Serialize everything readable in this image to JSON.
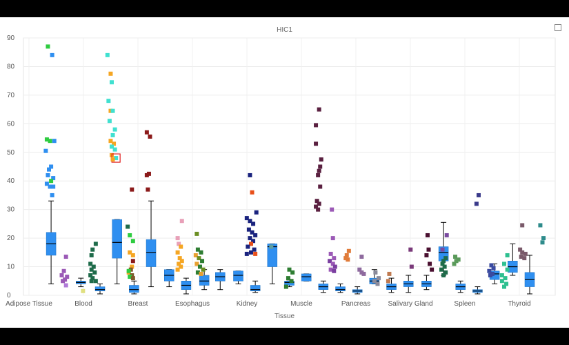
{
  "chart_data": {
    "type": "box",
    "title": "HIC1",
    "xlabel": "Tissue",
    "ylabel": "",
    "ylim": [
      0,
      90
    ],
    "yticks": [
      0,
      10,
      20,
      30,
      40,
      50,
      60,
      70,
      80,
      90
    ],
    "grid": true,
    "categories": [
      "Adipose Tissue",
      "Blood",
      "Breast",
      "Esophagus",
      "Kidney",
      "Muscle",
      "Pancreas",
      "Salivary Gland",
      "Spleen",
      "Thyroid"
    ],
    "box_color": "#2f8ff0",
    "boxes": [
      {
        "x": 2.6,
        "min": 4,
        "q1": 14,
        "median": 18,
        "q3": 22,
        "max": 33
      },
      {
        "x": 5.4,
        "min": 3,
        "q1": 4,
        "median": 4.5,
        "q3": 5,
        "max": 6
      },
      {
        "x": 7.2,
        "min": 0.5,
        "q1": 1.5,
        "median": 2,
        "q3": 3,
        "max": 4
      },
      {
        "x": 8.8,
        "min": 4,
        "q1": 13,
        "median": 18.5,
        "q3": 26.5,
        "max": 26.5
      },
      {
        "x": 10.4,
        "min": 0.5,
        "q1": 1,
        "median": 2,
        "q3": 3.5,
        "max": 5
      },
      {
        "x": 12.0,
        "min": 3,
        "q1": 10,
        "median": 15,
        "q3": 19.5,
        "max": 33
      },
      {
        "x": 13.7,
        "min": 3,
        "q1": 5,
        "median": 7,
        "q3": 9,
        "max": 9
      },
      {
        "x": 15.3,
        "min": 0.5,
        "q1": 2,
        "median": 3.5,
        "q3": 5,
        "max": 6
      },
      {
        "x": 17.0,
        "min": 2,
        "q1": 3.5,
        "median": 5,
        "q3": 7,
        "max": 9
      },
      {
        "x": 18.5,
        "min": 2,
        "q1": 5,
        "median": 6.5,
        "q3": 8,
        "max": 9
      },
      {
        "x": 20.2,
        "min": 4,
        "q1": 5,
        "median": 7,
        "q3": 8.5,
        "max": 8.5
      },
      {
        "x": 21.8,
        "min": 1,
        "q1": 1.5,
        "median": 2,
        "q3": 3.5,
        "max": 5
      },
      {
        "x": 23.4,
        "min": 4,
        "q1": 10,
        "median": 17,
        "q3": 18,
        "max": 18
      },
      {
        "x": 25.0,
        "min": 3,
        "q1": 3.5,
        "median": 4.5,
        "q3": 5,
        "max": 5
      },
      {
        "x": 26.6,
        "min": 5,
        "q1": 5,
        "median": 6.5,
        "q3": 7.5,
        "max": 7.5
      },
      {
        "x": 28.2,
        "min": 1,
        "q1": 2,
        "median": 3,
        "q3": 4,
        "max": 5
      },
      {
        "x": 29.8,
        "min": 1,
        "q1": 1.5,
        "median": 2,
        "q3": 3,
        "max": 4
      },
      {
        "x": 31.4,
        "min": 0.5,
        "q1": 1,
        "median": 1.5,
        "q3": 2,
        "max": 3
      },
      {
        "x": 33.0,
        "min": 4,
        "q1": 4,
        "median": 5,
        "q3": 6,
        "max": 9
      },
      {
        "x": 34.6,
        "min": 1,
        "q1": 2,
        "median": 3,
        "q3": 4,
        "max": 6
      },
      {
        "x": 36.2,
        "min": 1,
        "q1": 3,
        "median": 4,
        "q3": 5,
        "max": 7
      },
      {
        "x": 37.9,
        "min": 2,
        "q1": 3,
        "median": 4,
        "q3": 5,
        "max": 7
      },
      {
        "x": 39.5,
        "min": 7,
        "q1": 12,
        "median": 15,
        "q3": 17,
        "max": 25.5
      },
      {
        "x": 41.1,
        "min": 1,
        "q1": 2,
        "median": 3,
        "q3": 4,
        "max": 5
      },
      {
        "x": 42.7,
        "min": 0.5,
        "q1": 1,
        "median": 1.5,
        "q3": 2,
        "max": 3
      },
      {
        "x": 44.3,
        "min": 4,
        "q1": 5.5,
        "median": 7.5,
        "q3": 8.5,
        "max": 11
      },
      {
        "x": 46.0,
        "min": 7,
        "q1": 8,
        "median": 10,
        "q3": 12,
        "max": 18
      },
      {
        "x": 47.6,
        "min": 0.5,
        "q1": 3,
        "median": 5.5,
        "q3": 8,
        "max": 14
      }
    ],
    "points": [
      {
        "x": 2.3,
        "y": 87,
        "c": "#2ecc40"
      },
      {
        "x": 2.7,
        "y": 84,
        "c": "#2f8ff0"
      },
      {
        "x": 2.2,
        "y": 54.5,
        "c": "#2ecc40"
      },
      {
        "x": 2.5,
        "y": 54,
        "c": "#2ecc40"
      },
      {
        "x": 2.9,
        "y": 54,
        "c": "#2f8ff0"
      },
      {
        "x": 2.1,
        "y": 50.5,
        "c": "#2f8ff0"
      },
      {
        "x": 2.6,
        "y": 45,
        "c": "#2f8ff0"
      },
      {
        "x": 2.4,
        "y": 44,
        "c": "#2f8ff0"
      },
      {
        "x": 2.3,
        "y": 42,
        "c": "#2f8ff0"
      },
      {
        "x": 2.8,
        "y": 41,
        "c": "#2f8ff0"
      },
      {
        "x": 2.2,
        "y": 39,
        "c": "#2f8ff0"
      },
      {
        "x": 2.6,
        "y": 40,
        "c": "#2ecc40"
      },
      {
        "x": 2.5,
        "y": 38,
        "c": "#2f8ff0"
      },
      {
        "x": 2.8,
        "y": 38,
        "c": "#2f8ff0"
      },
      {
        "x": 2.7,
        "y": 35,
        "c": "#2f8ff0"
      },
      {
        "x": 4.0,
        "y": 13.5,
        "c": "#9b59b6"
      },
      {
        "x": 3.8,
        "y": 8.5,
        "c": "#9b59b6"
      },
      {
        "x": 3.6,
        "y": 7,
        "c": "#9b59b6"
      },
      {
        "x": 4.1,
        "y": 6.5,
        "c": "#9b59b6"
      },
      {
        "x": 3.9,
        "y": 5.5,
        "c": "#9b59b6"
      },
      {
        "x": 3.7,
        "y": 5,
        "c": "#9b59b6"
      },
      {
        "x": 4.0,
        "y": 3.5,
        "c": "#b07ad8"
      },
      {
        "x": 5.6,
        "y": 1.5,
        "c": "#e0e080"
      },
      {
        "x": 6.8,
        "y": 18,
        "c": "#1e6b4a"
      },
      {
        "x": 6.5,
        "y": 16,
        "c": "#1e6b4a"
      },
      {
        "x": 6.4,
        "y": 14,
        "c": "#1e6b4a"
      },
      {
        "x": 6.3,
        "y": 11,
        "c": "#1e6b4a"
      },
      {
        "x": 6.6,
        "y": 10,
        "c": "#1e6b4a"
      },
      {
        "x": 6.4,
        "y": 9,
        "c": "#1e6b4a"
      },
      {
        "x": 6.7,
        "y": 8,
        "c": "#1e6b4a"
      },
      {
        "x": 6.3,
        "y": 7,
        "c": "#1e6b4a"
      },
      {
        "x": 6.5,
        "y": 6,
        "c": "#1e6b4a"
      },
      {
        "x": 6.8,
        "y": 5,
        "c": "#1e6b4a"
      },
      {
        "x": 6.4,
        "y": 5,
        "c": "#1e6b4a"
      },
      {
        "x": 7.9,
        "y": 84,
        "c": "#40e0d0"
      },
      {
        "x": 8.2,
        "y": 77.5,
        "c": "#f5a623"
      },
      {
        "x": 8.3,
        "y": 74.5,
        "c": "#40e0d0"
      },
      {
        "x": 8.0,
        "y": 68,
        "c": "#40e0d0"
      },
      {
        "x": 8.2,
        "y": 64.5,
        "c": "#f5a623"
      },
      {
        "x": 8.4,
        "y": 64.5,
        "c": "#40e0d0"
      },
      {
        "x": 8.1,
        "y": 61,
        "c": "#40e0d0"
      },
      {
        "x": 8.6,
        "y": 58,
        "c": "#40e0d0"
      },
      {
        "x": 8.4,
        "y": 56,
        "c": "#40e0d0"
      },
      {
        "x": 8.2,
        "y": 54,
        "c": "#f5a623"
      },
      {
        "x": 8.5,
        "y": 53,
        "c": "#f5a623"
      },
      {
        "x": 8.3,
        "y": 52,
        "c": "#40e0d0"
      },
      {
        "x": 8.6,
        "y": 51,
        "c": "#40e0d0"
      },
      {
        "x": 8.3,
        "y": 49,
        "c": "#f5a623"
      },
      {
        "x": 8.7,
        "y": 48,
        "c": "#40e0d0",
        "hl": true
      },
      {
        "x": 8.4,
        "y": 47.5,
        "c": "#f5a623"
      },
      {
        "x": 9.8,
        "y": 24,
        "c": "#1e6b4a"
      },
      {
        "x": 10.0,
        "y": 21,
        "c": "#2ecc40"
      },
      {
        "x": 10.3,
        "y": 19,
        "c": "#2ecc40"
      },
      {
        "x": 10.0,
        "y": 15,
        "c": "#f5a623"
      },
      {
        "x": 10.3,
        "y": 14,
        "c": "#f5a623"
      },
      {
        "x": 10.2,
        "y": 10,
        "c": "#f5a623"
      },
      {
        "x": 10.1,
        "y": 9,
        "c": "#7f5a2a"
      },
      {
        "x": 9.9,
        "y": 8,
        "c": "#f5a623"
      },
      {
        "x": 10.2,
        "y": 7,
        "c": "#7f5a2a"
      },
      {
        "x": 10.0,
        "y": 6.5,
        "c": "#2ecc40"
      },
      {
        "x": 10.3,
        "y": 6,
        "c": "#7f5a2a"
      },
      {
        "x": 9.9,
        "y": 8.5,
        "c": "#2ecc40"
      },
      {
        "x": 10.2,
        "y": 37,
        "c": "#8b1a1a"
      },
      {
        "x": 10.3,
        "y": 12,
        "c": "#8b1a1a"
      },
      {
        "x": 11.6,
        "y": 57,
        "c": "#8b1a1a"
      },
      {
        "x": 11.9,
        "y": 55.5,
        "c": "#8b1a1a"
      },
      {
        "x": 11.8,
        "y": 42.5,
        "c": "#8b1a1a"
      },
      {
        "x": 11.6,
        "y": 42,
        "c": "#8b1a1a"
      },
      {
        "x": 11.7,
        "y": 37,
        "c": "#8b1a1a"
      },
      {
        "x": 14.9,
        "y": 26,
        "c": "#e8a0b8"
      },
      {
        "x": 14.5,
        "y": 20,
        "c": "#e8a0b8"
      },
      {
        "x": 14.6,
        "y": 18,
        "c": "#e8a0b8"
      },
      {
        "x": 14.8,
        "y": 17,
        "c": "#f5a623"
      },
      {
        "x": 14.5,
        "y": 15,
        "c": "#f5a623"
      },
      {
        "x": 14.7,
        "y": 13,
        "c": "#f5a623"
      },
      {
        "x": 14.9,
        "y": 12,
        "c": "#f5a623"
      },
      {
        "x": 14.6,
        "y": 11,
        "c": "#f5a623"
      },
      {
        "x": 14.8,
        "y": 10,
        "c": "#f5a623"
      },
      {
        "x": 14.5,
        "y": 9,
        "c": "#f5a623"
      },
      {
        "x": 16.3,
        "y": 21.5,
        "c": "#6b8e23"
      },
      {
        "x": 16.4,
        "y": 16,
        "c": "#2e7d32"
      },
      {
        "x": 16.7,
        "y": 15,
        "c": "#2e7d32"
      },
      {
        "x": 16.2,
        "y": 14,
        "c": "#e8a030"
      },
      {
        "x": 16.5,
        "y": 13,
        "c": "#6b8e23"
      },
      {
        "x": 16.8,
        "y": 12,
        "c": "#2e7d32"
      },
      {
        "x": 16.3,
        "y": 11,
        "c": "#e8a030"
      },
      {
        "x": 16.6,
        "y": 10,
        "c": "#2e7d32"
      },
      {
        "x": 16.9,
        "y": 9,
        "c": "#6b8e23"
      },
      {
        "x": 16.4,
        "y": 8,
        "c": "#2e7d32"
      },
      {
        "x": 16.7,
        "y": 7.5,
        "c": "#e8a030"
      },
      {
        "x": 21.3,
        "y": 42,
        "c": "#1a237e"
      },
      {
        "x": 21.5,
        "y": 36,
        "c": "#e8501a"
      },
      {
        "x": 21.9,
        "y": 29,
        "c": "#1a237e"
      },
      {
        "x": 21.0,
        "y": 27,
        "c": "#1a237e"
      },
      {
        "x": 21.3,
        "y": 26,
        "c": "#1a237e"
      },
      {
        "x": 21.6,
        "y": 25,
        "c": "#1a237e"
      },
      {
        "x": 21.2,
        "y": 23,
        "c": "#1a237e"
      },
      {
        "x": 21.5,
        "y": 22,
        "c": "#1a237e"
      },
      {
        "x": 21.8,
        "y": 21,
        "c": "#1a237e"
      },
      {
        "x": 21.3,
        "y": 20,
        "c": "#1a237e"
      },
      {
        "x": 21.6,
        "y": 19,
        "c": "#1a237e"
      },
      {
        "x": 21.4,
        "y": 18,
        "c": "#e8501a"
      },
      {
        "x": 21.1,
        "y": 17,
        "c": "#1a237e"
      },
      {
        "x": 21.7,
        "y": 16,
        "c": "#1a237e"
      },
      {
        "x": 21.4,
        "y": 15,
        "c": "#1a237e"
      },
      {
        "x": 21.0,
        "y": 14.5,
        "c": "#1a237e"
      },
      {
        "x": 21.8,
        "y": 14.5,
        "c": "#e8501a"
      },
      {
        "x": 23.3,
        "y": 17,
        "c": "#5f9ea0"
      },
      {
        "x": 25.0,
        "y": 9,
        "c": "#2e7d32"
      },
      {
        "x": 25.3,
        "y": 8,
        "c": "#2e7d32"
      },
      {
        "x": 24.9,
        "y": 6,
        "c": "#2e7d32"
      },
      {
        "x": 25.2,
        "y": 5,
        "c": "#2e7d32"
      },
      {
        "x": 24.7,
        "y": 3,
        "c": "#2e7d32"
      },
      {
        "x": 27.8,
        "y": 65,
        "c": "#5a2040"
      },
      {
        "x": 27.5,
        "y": 59.5,
        "c": "#5a2040"
      },
      {
        "x": 27.5,
        "y": 53,
        "c": "#5a2040"
      },
      {
        "x": 28.0,
        "y": 47.5,
        "c": "#5a2040"
      },
      {
        "x": 27.9,
        "y": 45,
        "c": "#5a2040"
      },
      {
        "x": 27.8,
        "y": 43.5,
        "c": "#5a2040"
      },
      {
        "x": 27.7,
        "y": 42,
        "c": "#5a2040"
      },
      {
        "x": 27.9,
        "y": 38,
        "c": "#5a2040"
      },
      {
        "x": 27.6,
        "y": 33,
        "c": "#5a2040"
      },
      {
        "x": 27.8,
        "y": 32,
        "c": "#5a2040"
      },
      {
        "x": 27.5,
        "y": 31,
        "c": "#5a2040"
      },
      {
        "x": 27.7,
        "y": 30,
        "c": "#5a2040"
      },
      {
        "x": 29.0,
        "y": 30,
        "c": "#9b59b6"
      },
      {
        "x": 29.1,
        "y": 20,
        "c": "#9b59b6"
      },
      {
        "x": 28.9,
        "y": 14.5,
        "c": "#9b59b6"
      },
      {
        "x": 29.2,
        "y": 13,
        "c": "#9b59b6"
      },
      {
        "x": 28.8,
        "y": 12,
        "c": "#7b3fa0"
      },
      {
        "x": 29.1,
        "y": 11,
        "c": "#9b59b6"
      },
      {
        "x": 29.3,
        "y": 10,
        "c": "#7b3fa0"
      },
      {
        "x": 28.9,
        "y": 9,
        "c": "#9b59b6"
      },
      {
        "x": 29.2,
        "y": 8.5,
        "c": "#7b3fa0"
      },
      {
        "x": 30.6,
        "y": 15.5,
        "c": "#e07b39"
      },
      {
        "x": 30.4,
        "y": 14,
        "c": "#e07b39"
      },
      {
        "x": 30.3,
        "y": 13,
        "c": "#e07b39"
      },
      {
        "x": 30.5,
        "y": 12.5,
        "c": "#e07b39"
      },
      {
        "x": 31.8,
        "y": 13.5,
        "c": "#8e6a9e"
      },
      {
        "x": 31.6,
        "y": 9,
        "c": "#8e6a9e"
      },
      {
        "x": 31.8,
        "y": 8,
        "c": "#8e6a9e"
      },
      {
        "x": 32.0,
        "y": 7.5,
        "c": "#8e6a9e"
      },
      {
        "x": 33.1,
        "y": 8,
        "c": "#8a8a9a"
      },
      {
        "x": 33.4,
        "y": 6,
        "c": "#8a8a9a"
      },
      {
        "x": 33.0,
        "y": 5,
        "c": "#8a8a9a"
      },
      {
        "x": 33.3,
        "y": 4,
        "c": "#8a8a9a"
      },
      {
        "x": 34.4,
        "y": 7.5,
        "c": "#c07a50"
      },
      {
        "x": 34.3,
        "y": 5,
        "c": "#c07a50"
      },
      {
        "x": 36.4,
        "y": 16,
        "c": "#7a3a7a"
      },
      {
        "x": 36.5,
        "y": 10,
        "c": "#7a3a7a"
      },
      {
        "x": 38.0,
        "y": 21,
        "c": "#4a1030"
      },
      {
        "x": 38.1,
        "y": 16,
        "c": "#4a1030"
      },
      {
        "x": 37.9,
        "y": 14,
        "c": "#4a1030"
      },
      {
        "x": 38.2,
        "y": 11,
        "c": "#4a1030"
      },
      {
        "x": 38.4,
        "y": 9,
        "c": "#4a1030"
      },
      {
        "x": 39.8,
        "y": 21,
        "c": "#7a4aa0"
      },
      {
        "x": 39.4,
        "y": 16,
        "c": "#7a4aa0"
      },
      {
        "x": 39.7,
        "y": 13,
        "c": "#1e6b4a"
      },
      {
        "x": 39.5,
        "y": 12,
        "c": "#1e6b4a"
      },
      {
        "x": 39.4,
        "y": 11,
        "c": "#1e6b4a"
      },
      {
        "x": 39.6,
        "y": 10,
        "c": "#1e6b4a"
      },
      {
        "x": 39.3,
        "y": 9,
        "c": "#1e6b4a"
      },
      {
        "x": 39.7,
        "y": 8,
        "c": "#1e6b4a"
      },
      {
        "x": 39.5,
        "y": 7,
        "c": "#1e6b4a"
      },
      {
        "x": 40.6,
        "y": 13.5,
        "c": "#5a9a5a"
      },
      {
        "x": 40.9,
        "y": 12.5,
        "c": "#5a9a5a"
      },
      {
        "x": 40.7,
        "y": 12,
        "c": "#5a9a5a"
      },
      {
        "x": 40.5,
        "y": 11,
        "c": "#5a9a5a"
      },
      {
        "x": 42.8,
        "y": 35,
        "c": "#3a3a8a"
      },
      {
        "x": 42.6,
        "y": 32,
        "c": "#3a3a8a"
      },
      {
        "x": 44.0,
        "y": 10.5,
        "c": "#3a4aa0"
      },
      {
        "x": 44.2,
        "y": 9.5,
        "c": "#3a4aa0"
      },
      {
        "x": 43.8,
        "y": 8.5,
        "c": "#3a4aa0"
      },
      {
        "x": 44.1,
        "y": 7.5,
        "c": "#3a4aa0"
      },
      {
        "x": 43.9,
        "y": 7,
        "c": "#3a4aa0"
      },
      {
        "x": 45.5,
        "y": 14,
        "c": "#2ec090"
      },
      {
        "x": 45.2,
        "y": 11,
        "c": "#2ec090"
      },
      {
        "x": 45.5,
        "y": 9,
        "c": "#2ec090"
      },
      {
        "x": 45.0,
        "y": 7,
        "c": "#2ec090"
      },
      {
        "x": 45.3,
        "y": 6,
        "c": "#2ec090"
      },
      {
        "x": 45.0,
        "y": 5,
        "c": "#2ec090"
      },
      {
        "x": 45.4,
        "y": 4,
        "c": "#2ec090"
      },
      {
        "x": 45.2,
        "y": 3,
        "c": "#2ec090"
      },
      {
        "x": 46.9,
        "y": 24.5,
        "c": "#7a5a6a"
      },
      {
        "x": 46.7,
        "y": 16,
        "c": "#7a5a6a"
      },
      {
        "x": 46.9,
        "y": 15,
        "c": "#7a5a6a"
      },
      {
        "x": 47.2,
        "y": 14.5,
        "c": "#7a5a6a"
      },
      {
        "x": 46.8,
        "y": 13.5,
        "c": "#7a5a6a"
      },
      {
        "x": 47.1,
        "y": 13,
        "c": "#7a5a6a"
      },
      {
        "x": 48.6,
        "y": 24.5,
        "c": "#2e8b8b"
      },
      {
        "x": 48.9,
        "y": 20,
        "c": "#2e8b8b"
      },
      {
        "x": 48.8,
        "y": 18.5,
        "c": "#2e8b8b"
      }
    ]
  },
  "ui": {
    "maximize_icon": "maximize-icon"
  }
}
